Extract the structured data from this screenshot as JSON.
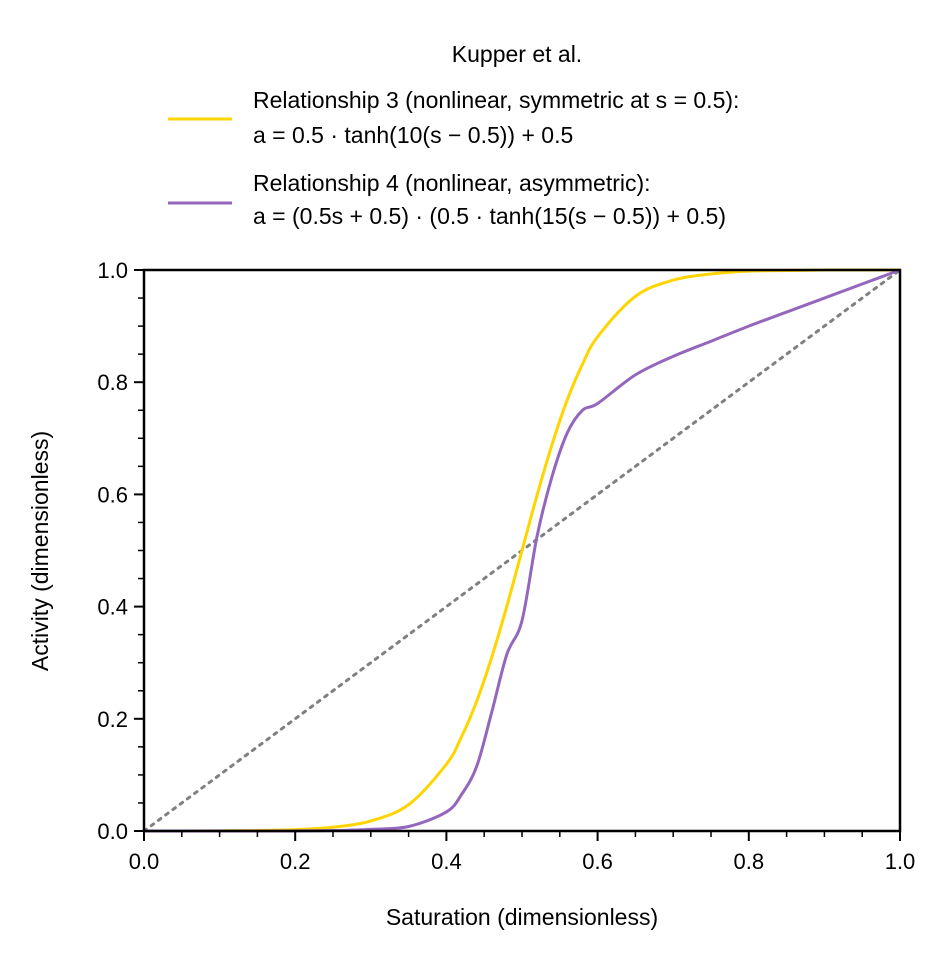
{
  "chart_data": {
    "type": "line",
    "title": "",
    "xlabel": "Saturation (dimensionless)",
    "ylabel": "Activity (dimensionless)",
    "xlim": [
      0,
      1
    ],
    "ylim": [
      0,
      1
    ],
    "xticks": [
      "0.0",
      "0.2",
      "0.4",
      "0.6",
      "0.8",
      "1.0"
    ],
    "yticks": [
      "0.0",
      "0.2",
      "0.4",
      "0.6",
      "0.8",
      "1.0"
    ],
    "grid": false,
    "legend": {
      "title": "Kupper et al.",
      "placement": "top-center, above plot",
      "entries": [
        {
          "line1": "Relationship 3 (nonlinear, symmetric at s = 0.5):",
          "line2": "a = 0.5 · tanh(10(s − 0.5)) + 0.5",
          "color": "#ffd500"
        },
        {
          "line1": "Relationship 4 (nonlinear, asymmetric):",
          "line2": "a = (0.5s + 0.5) · (0.5 · tanh(15(s − 0.5)) + 0.5)",
          "color": "#9467bd"
        }
      ]
    },
    "x": [
      0.0,
      0.05,
      0.1,
      0.15,
      0.2,
      0.25,
      0.3,
      0.35,
      0.4,
      0.42,
      0.44,
      0.46,
      0.48,
      0.5,
      0.52,
      0.54,
      0.56,
      0.58,
      0.6,
      0.65,
      0.7,
      0.75,
      0.8,
      0.85,
      0.9,
      0.95,
      1.0
    ],
    "series": [
      {
        "name": "Relationship 3",
        "color": "#ffd500",
        "style": "solid",
        "values": [
          0.0,
          0.0,
          0.0003,
          0.0009,
          0.0025,
          0.0067,
          0.018,
          0.047,
          0.119,
          0.168,
          0.231,
          0.31,
          0.401,
          0.5,
          0.599,
          0.69,
          0.769,
          0.832,
          0.881,
          0.953,
          0.982,
          0.993,
          0.998,
          0.999,
          1.0,
          1.0,
          1.0
        ]
      },
      {
        "name": "Relationship 4",
        "color": "#9467bd",
        "style": "solid",
        "values": [
          0.0,
          0.0,
          0.0,
          0.0,
          0.0001,
          0.0008,
          0.003,
          0.008,
          0.034,
          0.065,
          0.115,
          0.212,
          0.315,
          0.375,
          0.526,
          0.633,
          0.71,
          0.75,
          0.762,
          0.813,
          0.846,
          0.873,
          0.9,
          0.925,
          0.95,
          0.975,
          1.0
        ]
      },
      {
        "name": "",
        "color": "#808080",
        "style": "dotted",
        "values": [
          0.0,
          0.05,
          0.1,
          0.15,
          0.2,
          0.25,
          0.3,
          0.35,
          0.4,
          0.42,
          0.44,
          0.46,
          0.48,
          0.5,
          0.52,
          0.54,
          0.56,
          0.58,
          0.6,
          0.65,
          0.7,
          0.75,
          0.8,
          0.85,
          0.9,
          0.95,
          1.0
        ]
      }
    ]
  }
}
